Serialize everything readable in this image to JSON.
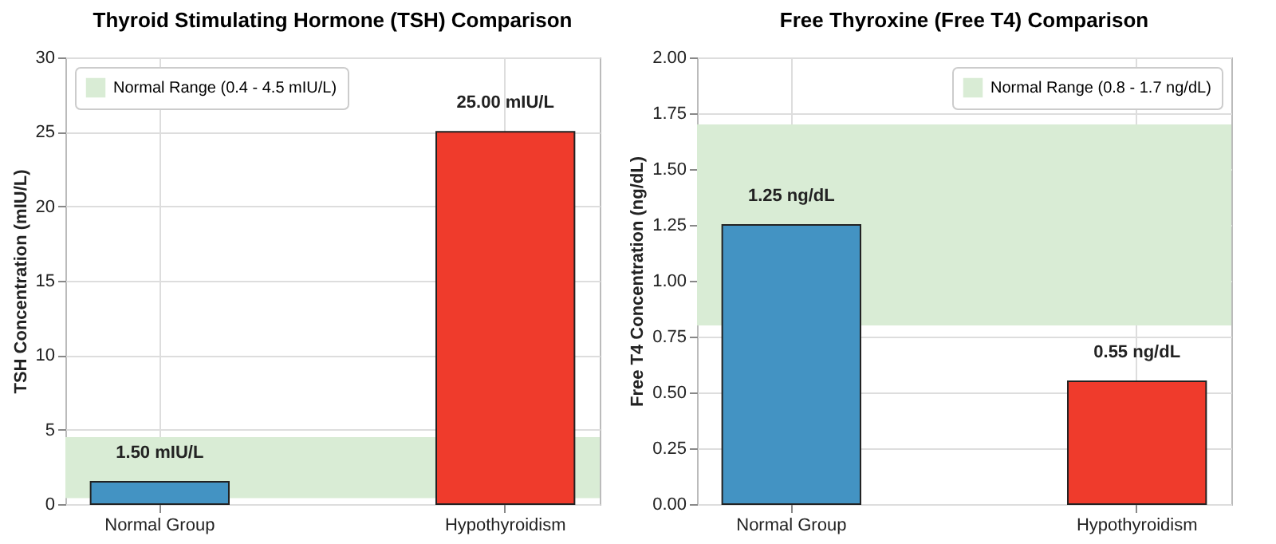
{
  "chart_data": [
    {
      "type": "bar",
      "title": "Thyroid Stimulating Hormone (TSH) Comparison",
      "ylabel": "TSH Concentration (mIU/L)",
      "categories": [
        "Normal Group",
        "Hypothyroidism"
      ],
      "values": [
        1.5,
        25
      ],
      "colors": [
        "#4393c3",
        "#ef3b2c"
      ],
      "value_labels": [
        "1.50 mIU/L",
        "25.00 mIU/L"
      ],
      "ylim": [
        0,
        30
      ],
      "yticks": [
        0,
        5,
        10,
        15,
        20,
        25,
        30
      ],
      "grid": true,
      "legend": "top left",
      "bands": [
        {
          "axis": "y",
          "from": 0.4,
          "to": 4.5,
          "label": "Normal Range (0.4 - 4.5 mIU/L)",
          "color": "#d9ecd5"
        }
      ]
    },
    {
      "type": "bar",
      "title": "Free Thyroxine (Free T4) Comparison",
      "ylabel": "Free T4 Concentration (ng/dL)",
      "categories": [
        "Normal Group",
        "Hypothyroidism"
      ],
      "values": [
        1.25,
        0.55
      ],
      "colors": [
        "#4393c3",
        "#ef3b2c"
      ],
      "value_labels": [
        "1.25 ng/dL",
        "0.55 ng/dL"
      ],
      "ylim": [
        0,
        2
      ],
      "yticks": [
        {
          "value": 0,
          "label": "0.00"
        },
        {
          "value": 0.25,
          "label": "0.25"
        },
        {
          "value": 0.5,
          "label": "0.50"
        },
        {
          "value": 0.75,
          "label": "0.75"
        },
        {
          "value": 1,
          "label": "1.00"
        },
        {
          "value": 1.25,
          "label": "1.25"
        },
        {
          "value": 1.5,
          "label": "1.50"
        },
        {
          "value": 1.75,
          "label": "1.75"
        },
        {
          "value": 2,
          "label": "2.00"
        }
      ],
      "grid": true,
      "legend": "top right",
      "bands": [
        {
          "axis": "y",
          "from": 0.8,
          "to": 1.7,
          "label": "Normal Range (0.8 - 1.7 ng/dL)",
          "color": "#d9ecd5"
        }
      ]
    }
  ]
}
